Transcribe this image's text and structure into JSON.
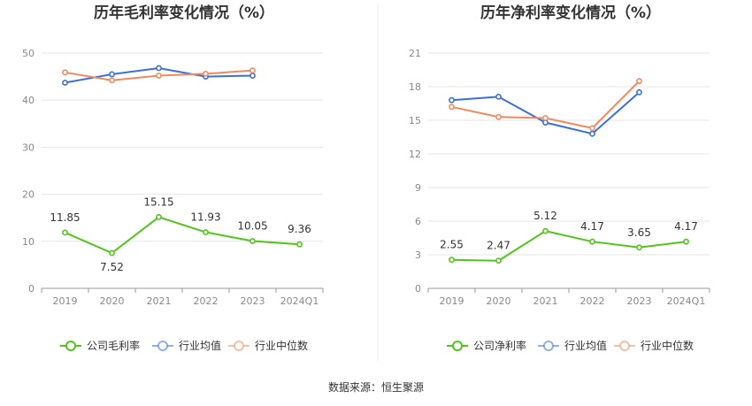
{
  "source": "数据来源：恒生聚源",
  "chart_data": [
    {
      "type": "line",
      "title": "历年毛利率变化情况（%）",
      "categories": [
        "2019",
        "2020",
        "2021",
        "2022",
        "2023",
        "2024Q1"
      ],
      "ylim": [
        0,
        50
      ],
      "yticks": [
        "0",
        "10",
        "20",
        "30",
        "40",
        "50"
      ],
      "grid": true,
      "legend_position": "bottom",
      "series": [
        {
          "name": "公司毛利率",
          "color": "#52c41a",
          "values": [
            11.85,
            7.52,
            15.15,
            11.93,
            10.05,
            9.36
          ],
          "labels": [
            "11.85",
            "7.52",
            "15.15",
            "11.93",
            "10.05",
            "9.36"
          ]
        },
        {
          "name": "行业均值",
          "color": "#3a6fdc",
          "values": [
            43.7,
            45.5,
            46.8,
            45.0,
            45.2,
            null
          ]
        },
        {
          "name": "行业中位数",
          "color": "#f08a5d",
          "values": [
            45.9,
            44.2,
            45.2,
            45.6,
            46.3,
            null
          ]
        }
      ]
    },
    {
      "type": "line",
      "title": "历年净利率变化情况（%）",
      "categories": [
        "2019",
        "2020",
        "2021",
        "2022",
        "2023",
        "2024Q1"
      ],
      "ylim": [
        0,
        21
      ],
      "yticks": [
        "0",
        "3",
        "6",
        "9",
        "12",
        "15",
        "18",
        "21"
      ],
      "grid": true,
      "legend_position": "bottom",
      "series": [
        {
          "name": "公司净利率",
          "color": "#52c41a",
          "values": [
            2.55,
            2.47,
            5.12,
            4.17,
            3.65,
            4.17
          ],
          "labels": [
            "2.55",
            "2.47",
            "5.12",
            "4.17",
            "3.65",
            "4.17"
          ]
        },
        {
          "name": "行业均值",
          "color": "#3a6fdc",
          "values": [
            16.8,
            17.1,
            14.8,
            13.8,
            17.5,
            null
          ]
        },
        {
          "name": "行业中位数",
          "color": "#f08a5d",
          "values": [
            16.2,
            15.3,
            15.2,
            14.3,
            18.5,
            null
          ]
        }
      ]
    }
  ]
}
